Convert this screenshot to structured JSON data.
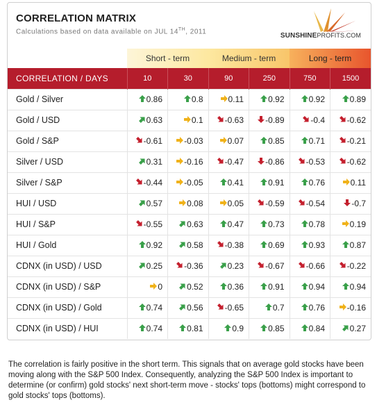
{
  "header": {
    "title": "CORRELATION MATRIX",
    "subtitle_prefix": "Calculations based on data available on  JUL 14",
    "subtitle_sup": "TH",
    "subtitle_suffix": ", 2011",
    "logo_main": "SUNSHINE",
    "logo_sub": "PROFITS.COM"
  },
  "terms": {
    "short": "Short - term",
    "medium": "Medium - term",
    "long": "Long - term"
  },
  "columns": {
    "label": "CORRELATION / DAYS",
    "days": [
      "10",
      "30",
      "90",
      "250",
      "750",
      "1500"
    ]
  },
  "colors": {
    "header_red": "#b51d2c",
    "up": "#3aa04a",
    "down": "#c4202e",
    "flat": "#f0b21a"
  },
  "rows": [
    {
      "label": "Gold / Silver",
      "values": [
        "0.86",
        "0.8",
        "0.11",
        "0.92",
        "0.92",
        "0.89"
      ],
      "arrows": [
        "up",
        "up",
        "right",
        "up",
        "up",
        "up"
      ]
    },
    {
      "label": "Gold / USD",
      "values": [
        "0.63",
        "0.1",
        "-0.63",
        "-0.89",
        "-0.4",
        "-0.62"
      ],
      "arrows": [
        "up-right",
        "right",
        "down-right",
        "down",
        "down-right",
        "down-right"
      ]
    },
    {
      "label": "Gold / S&P",
      "values": [
        "-0.61",
        "-0.03",
        "0.07",
        "0.85",
        "0.71",
        "-0.21"
      ],
      "arrows": [
        "down-right",
        "right",
        "right",
        "up",
        "up",
        "down-right"
      ]
    },
    {
      "label": "Silver / USD",
      "values": [
        "0.31",
        "-0.16",
        "-0.47",
        "-0.86",
        "-0.53",
        "-0.62"
      ],
      "arrows": [
        "up-right",
        "right",
        "down-right",
        "down",
        "down-right",
        "down-right"
      ]
    },
    {
      "label": "Silver / S&P",
      "values": [
        "-0.44",
        "-0.05",
        "0.41",
        "0.91",
        "0.76",
        "0.11"
      ],
      "arrows": [
        "down-right",
        "right",
        "up",
        "up",
        "up",
        "right"
      ]
    },
    {
      "label": "HUI / USD",
      "values": [
        "0.57",
        "0.08",
        "0.05",
        "-0.59",
        "-0.54",
        "-0.7"
      ],
      "arrows": [
        "up-right",
        "right",
        "right",
        "down-right",
        "down-right",
        "down"
      ]
    },
    {
      "label": "HUI / S&P",
      "values": [
        "-0.55",
        "0.63",
        "0.47",
        "0.73",
        "0.78",
        "0.19"
      ],
      "arrows": [
        "down-right",
        "up-right",
        "up",
        "up",
        "up",
        "right"
      ]
    },
    {
      "label": "HUI / Gold",
      "values": [
        "0.92",
        "0.58",
        "-0.38",
        "0.69",
        "0.93",
        "0.87"
      ],
      "arrows": [
        "up",
        "up-right",
        "down-right",
        "up",
        "up",
        "up"
      ]
    },
    {
      "label": "CDNX (in USD) / USD",
      "values": [
        "0.25",
        "-0.36",
        "0.23",
        "-0.67",
        "-0.66",
        "-0.22"
      ],
      "arrows": [
        "up-right",
        "down-right",
        "up-right",
        "down-right",
        "down-right",
        "down-right"
      ]
    },
    {
      "label": "CDNX (in USD) / S&P",
      "values": [
        "0",
        "0.52",
        "0.36",
        "0.91",
        "0.94",
        "0.94"
      ],
      "arrows": [
        "right",
        "up-right",
        "up",
        "up",
        "up",
        "up"
      ]
    },
    {
      "label": "CDNX (in USD) / Gold",
      "values": [
        "0.74",
        "0.56",
        "-0.65",
        "0.7",
        "0.76",
        "-0.16"
      ],
      "arrows": [
        "up",
        "up-right",
        "down-right",
        "up",
        "up",
        "right"
      ]
    },
    {
      "label": "CDNX (in USD) / HUI",
      "values": [
        "0.74",
        "0.81",
        "0.9",
        "0.85",
        "0.84",
        "0.27"
      ],
      "arrows": [
        "up",
        "up",
        "up",
        "up",
        "up",
        "up-right"
      ]
    }
  ],
  "note": "The correlation is fairly positive in the short term. This signals that on average gold stocks have been moving along with the S&P 500 Index. Consequently, analyzing the S&P 500 Index is important to determine (or confirm) gold stocks' next short-term move - stocks' tops (bottoms) might correspond to gold stocks' tops (bottoms)."
}
